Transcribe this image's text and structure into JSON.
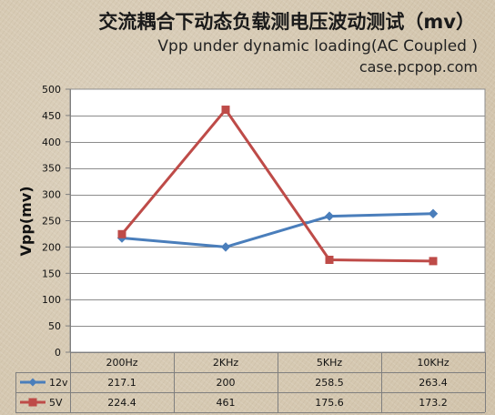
{
  "header": {
    "title": "交流耦合下动态负载测电压波动测试（mv）",
    "subtitle": "Vpp under dynamic loading(AC Coupled )",
    "source": "case.pcpop.com"
  },
  "chart_data": {
    "type": "line",
    "categories": [
      "200Hz",
      "2KHz",
      "5KHz",
      "10KHz"
    ],
    "series": [
      {
        "name": "12v",
        "values": [
          217.1,
          200,
          258.5,
          263.4
        ],
        "color": "#4a7ebb",
        "marker": "diamond"
      },
      {
        "name": "5V",
        "values": [
          224.4,
          461,
          175.6,
          173.2
        ],
        "color": "#be4b48",
        "marker": "square"
      }
    ],
    "value_labels": {
      "12v": [
        "217.1",
        "200",
        "258.5",
        "263.4"
      ],
      "5V": [
        "224.4",
        "461",
        "175.6",
        "173.2"
      ]
    },
    "ylabel": "Vpp(mv)",
    "xlabel": "",
    "ylim": [
      0,
      500
    ],
    "yticks": [
      0,
      50,
      100,
      150,
      200,
      250,
      300,
      350,
      400,
      450,
      500
    ],
    "grid": true,
    "legend": "data-table",
    "plot_background": "#ffffff",
    "gridline_color": "#8c8c8c"
  }
}
